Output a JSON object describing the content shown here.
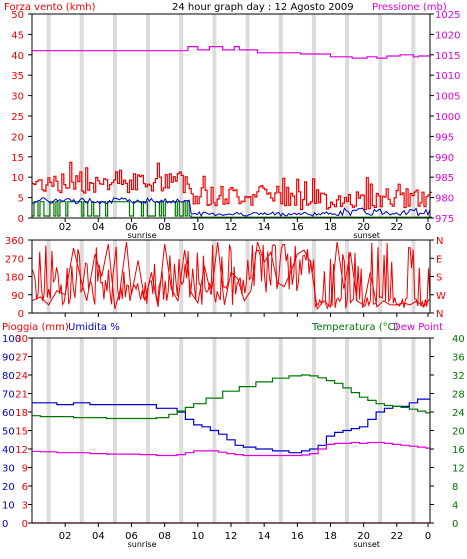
{
  "header": {
    "left": "Forza vento (kmh)",
    "center": "24 hour graph day : 12 Agosto 2009",
    "right": "Pressione (mb)"
  },
  "panel3_header": {
    "left1": "Pioggia (mm)",
    "left2": "Umidita %",
    "right1": "Temperatura (°C)",
    "right2": "Dew Point"
  },
  "colors": {
    "red": "#ee0000",
    "magenta": "#dd00dd",
    "green": "#007700",
    "blue": "#0000cc",
    "pink": "#dd00dd",
    "band": "#dcdcdc"
  },
  "x_ticks": [
    "02",
    "04",
    "06",
    "08",
    "10",
    "12",
    "14",
    "16",
    "18",
    "20",
    "22",
    "0"
  ],
  "sunrise_label": "sunrise",
  "sunset_label": "sunset",
  "chart_data": [
    {
      "type": "line",
      "title": "24 hour graph day : 12 Agosto 2009",
      "ylabel": "Forza vento (kmh)",
      "ylabel_right": "Pressione (mb)",
      "ylim": [
        0,
        50
      ],
      "ylim_right": [
        975,
        1025
      ],
      "yticks": [
        0,
        5,
        10,
        15,
        20,
        25,
        30,
        35,
        40,
        45,
        50
      ],
      "yticks_right": [
        975,
        980,
        985,
        990,
        995,
        1000,
        1005,
        1010,
        1015,
        1020,
        1025
      ],
      "xlim": [
        0,
        24
      ],
      "series": [
        {
          "name": "Pressione (mb)",
          "axis": "right",
          "color": "#dd00dd",
          "x": [
            0,
            9.4,
            9.4,
            10.0,
            10.0,
            10.7,
            10.7,
            11.5,
            11.5,
            12.2,
            12.2,
            12.5,
            12.5,
            13.6,
            13.6,
            16.2,
            16.2,
            18.0,
            18.0,
            19.3,
            19.3,
            20.2,
            20.2,
            20.8,
            20.8,
            21.4,
            21.4,
            22.2,
            22.2,
            23.0,
            23.0,
            23.3,
            23.3,
            24.0
          ],
          "y": [
            1016,
            1016,
            1017,
            1017,
            1016.2,
            1016.2,
            1017,
            1017,
            1016.2,
            1016.2,
            1017,
            1017,
            1016.2,
            1016.2,
            1015.5,
            1015.5,
            1015.2,
            1015.2,
            1014.5,
            1014.5,
            1014.2,
            1014.2,
            1014.5,
            1014.5,
            1014.2,
            1014.2,
            1014.7,
            1014.7,
            1015,
            1015,
            1014.5,
            1014.5,
            1014.7,
            1014.7
          ]
        }
      ]
    },
    {
      "type": "line",
      "ylabel": "",
      "ylim": [
        0,
        360
      ],
      "yticks": [
        0,
        90,
        180,
        270,
        360
      ],
      "yticks_right": [
        "N",
        "W",
        "S",
        "E",
        "N"
      ],
      "xlim": [
        0,
        24
      ],
      "series": [
        {
          "color": "#ee0000",
          "x": [
            0,
            0.5,
            1,
            1.5,
            2,
            2.5,
            3,
            3.3,
            3.8,
            4.2,
            4.6,
            5,
            5.3,
            5.7,
            6,
            6.4,
            6.8,
            7.2,
            7.6,
            8,
            8.4,
            8.8,
            9.2,
            9.6,
            10,
            10.4,
            10.8,
            11.2,
            11.6,
            12,
            12.4,
            12.8,
            13.2,
            13.6,
            14,
            14.4,
            14.8,
            15.2,
            15.6,
            16,
            16.4,
            16.8,
            17.2,
            17.6,
            18,
            18.4,
            18.8,
            19.2,
            19.6,
            20,
            20.4,
            20.8,
            21.2,
            21.6,
            22,
            22.4,
            22.8,
            23.2,
            23.6,
            24
          ],
          "y": [
            60,
            80,
            40,
            110,
            90,
            320,
            150,
            60,
            290,
            180,
            340,
            20,
            110,
            350,
            90,
            260,
            60,
            200,
            30,
            340,
            120,
            60,
            310,
            100,
            50,
            230,
            90,
            350,
            40,
            200,
            170,
            60,
            110,
            350,
            250,
            300,
            150,
            130,
            200,
            290,
            310,
            250,
            20,
            60,
            30,
            350,
            120,
            300,
            60,
            40,
            200,
            30,
            60,
            40,
            40,
            50,
            40,
            60,
            30,
            70
          ]
        }
      ]
    },
    {
      "type": "line",
      "ylabel": "Pioggia (mm) / Umidita %",
      "ylabel_right": "Temperatura (°C) / Dew Point",
      "ylim": [
        0,
        100
      ],
      "ylim_rain": [
        0,
        30
      ],
      "ylim_right": [
        0,
        40
      ],
      "yticks": [
        0,
        10,
        20,
        30,
        40,
        50,
        60,
        70,
        80,
        90,
        100
      ],
      "yticks_rain": [
        0,
        3,
        6,
        9,
        12,
        15,
        18,
        21,
        24,
        27,
        30
      ],
      "yticks_right": [
        0,
        4,
        8,
        12,
        16,
        20,
        24,
        28,
        32,
        36,
        40
      ],
      "xlim": [
        0,
        24
      ],
      "series": [
        {
          "name": "Umidita %",
          "axis": "left",
          "color": "#0000cc",
          "x": [
            0,
            1,
            2,
            3,
            4,
            5,
            6,
            7,
            8,
            8.5,
            9,
            9.5,
            10,
            10.5,
            11,
            11.5,
            12,
            12.5,
            13,
            14,
            15,
            16,
            16.5,
            17,
            17.5,
            18,
            18.5,
            19,
            19.5,
            20,
            20.5,
            21,
            21.5,
            22,
            22.5,
            23,
            23.5,
            24
          ],
          "y": [
            65,
            65,
            64,
            65,
            64,
            64,
            64,
            64,
            62,
            62,
            60,
            56,
            53,
            52,
            50,
            48,
            45,
            42,
            41,
            40,
            39,
            38,
            39,
            40,
            42,
            47,
            49,
            50,
            51,
            52,
            56,
            60,
            62,
            63,
            63,
            65,
            67,
            67
          ]
        },
        {
          "name": "Temperatura (°C)",
          "axis": "right",
          "color": "#007700",
          "x": [
            0,
            1,
            2,
            3,
            4,
            5,
            6,
            7,
            8,
            8.5,
            9,
            9.5,
            10,
            11,
            12,
            13,
            14,
            15,
            16,
            16.5,
            17,
            17.5,
            18,
            18.5,
            19,
            19.5,
            20,
            20.5,
            21,
            21.5,
            22,
            22.5,
            23,
            23.5,
            24
          ],
          "y": [
            23.2,
            23,
            23,
            22.8,
            22.8,
            22.6,
            22.6,
            22.6,
            22.8,
            23.5,
            24.2,
            25,
            25.8,
            27,
            28.5,
            29.5,
            30.5,
            31.3,
            31.8,
            32,
            31.8,
            31.4,
            30.8,
            30.2,
            29.2,
            28.2,
            27.2,
            26.5,
            25.8,
            25.4,
            25.2,
            25,
            24.6,
            24.2,
            23.8
          ]
        },
        {
          "name": "Dew Point",
          "axis": "right",
          "color": "#dd00dd",
          "x": [
            0,
            1,
            2,
            3,
            4,
            5,
            6,
            7,
            8,
            8.5,
            9,
            9.5,
            10,
            10.5,
            11,
            11.5,
            12,
            12.5,
            13,
            14,
            15,
            16,
            16.5,
            17,
            17.5,
            18,
            18.5,
            19,
            19.5,
            20,
            20.5,
            21,
            21.5,
            22,
            22.5,
            23,
            23.5,
            24
          ],
          "y": [
            15.5,
            15.4,
            15.2,
            15.2,
            15,
            14.9,
            14.9,
            14.8,
            14.6,
            14.6,
            14.8,
            15.2,
            15.6,
            15.6,
            15.6,
            15.3,
            15.0,
            14.8,
            14.6,
            14.6,
            14.6,
            14.6,
            14.7,
            15,
            16,
            17,
            17.2,
            17.2,
            17.4,
            17.2,
            17.4,
            17.4,
            17.2,
            17.0,
            16.8,
            16.6,
            16.4,
            16.2
          ]
        },
        {
          "name": "Pioggia (mm)",
          "axis": "rain",
          "color": "#ee0000",
          "x": [
            0,
            24
          ],
          "y": [
            0,
            0
          ]
        }
      ]
    }
  ]
}
